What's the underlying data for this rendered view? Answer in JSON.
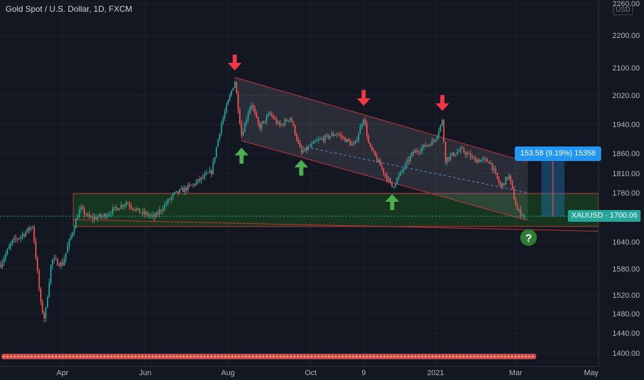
{
  "header": {
    "symbol_title": "Gold Spot / U.S. Dollar, 1D, FXCM",
    "currency_badge": "USD"
  },
  "price_label": {
    "text": "XAUUSD · 1700.06",
    "symbol": "XAUUSD",
    "price": 1700.06
  },
  "measure_label": {
    "text": "153.58 (9.19%) 15358"
  },
  "colors": {
    "background": "#131722",
    "up_candle": "#26a69a",
    "down_candle": "#ef5350",
    "channel_border": "#c2353a",
    "support_zone": "#1b5e20",
    "measure_box": "#2196f3",
    "arrow_down": "#f23645",
    "arrow_up": "#4caf50"
  },
  "chart_data": {
    "type": "candlestick",
    "title": "Gold Spot / U.S. Dollar, 1D, FXCM",
    "xlabel": "",
    "ylabel": "",
    "ylim": [
      1380,
      2260
    ],
    "y_ticks": [
      1400,
      1440,
      1480,
      1520,
      1580,
      1640,
      1700,
      1760,
      1810,
      1860,
      1940,
      2020,
      2100,
      2200,
      2260
    ],
    "x_ticks": [
      "Apr",
      "Jun",
      "Aug",
      "Oct",
      "9",
      "2021",
      "Mar",
      "May"
    ],
    "x_range": [
      "2020-02-15",
      "2021-05-01"
    ],
    "grid": true,
    "last_price": 1700.06,
    "price_path": [
      [
        "2020-02-15",
        1588
      ],
      [
        "2020-02-24",
        1640
      ],
      [
        "2020-03-04",
        1660
      ],
      [
        "2020-03-10",
        1678
      ],
      [
        "2020-03-16",
        1500
      ],
      [
        "2020-03-19",
        1468
      ],
      [
        "2020-03-24",
        1600
      ],
      [
        "2020-04-01",
        1590
      ],
      [
        "2020-04-14",
        1720
      ],
      [
        "2020-04-21",
        1695
      ],
      [
        "2020-05-01",
        1700
      ],
      [
        "2020-05-18",
        1735
      ],
      [
        "2020-05-28",
        1710
      ],
      [
        "2020-06-08",
        1698
      ],
      [
        "2020-06-22",
        1755
      ],
      [
        "2020-07-06",
        1780
      ],
      [
        "2020-07-20",
        1815
      ],
      [
        "2020-07-27",
        1940
      ],
      [
        "2020-08-06",
        2062
      ],
      [
        "2020-08-11",
        1910
      ],
      [
        "2020-08-18",
        2000
      ],
      [
        "2020-08-24",
        1930
      ],
      [
        "2020-09-01",
        1970
      ],
      [
        "2020-09-08",
        1935
      ],
      [
        "2020-09-16",
        1960
      ],
      [
        "2020-09-24",
        1860
      ],
      [
        "2020-10-06",
        1895
      ],
      [
        "2020-10-20",
        1915
      ],
      [
        "2020-11-02",
        1880
      ],
      [
        "2020-11-09",
        1960
      ],
      [
        "2020-11-13",
        1880
      ],
      [
        "2020-11-30",
        1775
      ],
      [
        "2020-12-15",
        1860
      ],
      [
        "2020-12-31",
        1895
      ],
      [
        "2021-01-06",
        1950
      ],
      [
        "2021-01-08",
        1845
      ],
      [
        "2021-01-20",
        1870
      ],
      [
        "2021-01-29",
        1845
      ],
      [
        "2021-02-10",
        1840
      ],
      [
        "2021-02-18",
        1775
      ],
      [
        "2021-02-24",
        1805
      ],
      [
        "2021-03-02",
        1715
      ],
      [
        "2021-03-08",
        1700
      ]
    ],
    "channel": {
      "upper": [
        [
          "2020-08-06",
          2072
        ],
        [
          "2021-03-10",
          1838
        ]
      ],
      "lower": [
        [
          "2020-08-11",
          1895
        ],
        [
          "2021-03-10",
          1690
        ]
      ],
      "midline": [
        [
          "2020-09-24",
          1880
        ],
        [
          "2021-03-10",
          1760
        ]
      ]
    },
    "support_zone": {
      "from": "2020-04-09",
      "to": "2021-05-01",
      "top": 1758,
      "bottom": 1676
    },
    "projection_line": [
      [
        "2020-04-09",
        1692
      ],
      [
        "2021-05-01",
        1665
      ]
    ],
    "measure": {
      "from": "2021-03-20",
      "to": "2021-04-06",
      "top": 1853,
      "bottom": 1699,
      "label": "153.58 (9.19%) 15358"
    },
    "annotations": [
      {
        "type": "arrow_down",
        "date": "2020-08-06",
        "price": 2115
      },
      {
        "type": "arrow_down",
        "date": "2020-11-09",
        "price": 2012
      },
      {
        "type": "arrow_down",
        "date": "2021-01-06",
        "price": 1998
      },
      {
        "type": "arrow_up",
        "date": "2020-08-11",
        "price": 1855
      },
      {
        "type": "arrow_up",
        "date": "2020-09-24",
        "price": 1825
      },
      {
        "type": "arrow_up",
        "date": "2020-11-30",
        "price": 1737
      },
      {
        "type": "question",
        "date": "2021-03-08",
        "price": 1650
      }
    ]
  }
}
